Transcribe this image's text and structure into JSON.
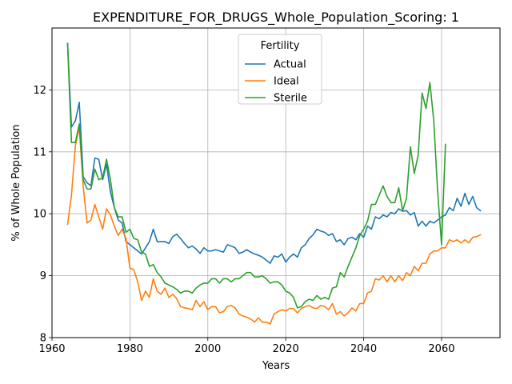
{
  "chart_data": {
    "type": "line",
    "title": "EXPENDITURE_FOR_DRUGS_Whole_Population_Scoring: 1",
    "xlabel": "Years",
    "ylabel": "% of Whole Population",
    "xlim": [
      1960,
      2075
    ],
    "ylim": [
      8,
      13
    ],
    "xticks": [
      1960,
      1980,
      2000,
      2020,
      2040,
      2060
    ],
    "yticks": [
      8,
      9,
      10,
      11,
      12
    ],
    "grid": true,
    "legend": {
      "title": "Fertility",
      "position": "top-center"
    },
    "series": [
      {
        "name": "Actual",
        "color": "#1f77b4",
        "x": [
          1964,
          1965,
          1966,
          1967,
          1968,
          1969,
          1970,
          1971,
          1972,
          1973,
          1974,
          1975,
          1976,
          1977,
          1978,
          1979,
          1980,
          1981,
          1982,
          1983,
          1984,
          1985,
          1986,
          1987,
          1988,
          1989,
          1990,
          1991,
          1992,
          1993,
          1994,
          1995,
          1996,
          1997,
          1998,
          1999,
          2000,
          2001,
          2002,
          2003,
          2004,
          2005,
          2006,
          2007,
          2008,
          2009,
          2010,
          2011,
          2012,
          2013,
          2014,
          2015,
          2016,
          2017,
          2018,
          2019,
          2020,
          2021,
          2022,
          2023,
          2024,
          2025,
          2026,
          2027,
          2028,
          2029,
          2030,
          2031,
          2032,
          2033,
          2034,
          2035,
          2036,
          2037,
          2038,
          2039,
          2040,
          2041,
          2042,
          2043,
          2044,
          2045,
          2046,
          2047,
          2048,
          2049,
          2050,
          2051,
          2052,
          2053,
          2054,
          2055,
          2056,
          2057,
          2058,
          2059,
          2060,
          2061,
          2062,
          2063,
          2064,
          2065,
          2066,
          2067,
          2068,
          2069,
          2070
        ],
        "values": [
          12.75,
          11.4,
          11.5,
          11.8,
          10.6,
          10.5,
          10.45,
          10.9,
          10.88,
          10.55,
          10.8,
          10.35,
          10.1,
          9.9,
          9.85,
          9.55,
          9.5,
          9.45,
          9.4,
          9.35,
          9.45,
          9.55,
          9.75,
          9.55,
          9.55,
          9.55,
          9.52,
          9.63,
          9.67,
          9.6,
          9.52,
          9.45,
          9.48,
          9.43,
          9.36,
          9.45,
          9.4,
          9.4,
          9.42,
          9.4,
          9.38,
          9.5,
          9.48,
          9.45,
          9.36,
          9.38,
          9.42,
          9.38,
          9.35,
          9.33,
          9.3,
          9.25,
          9.2,
          9.32,
          9.3,
          9.35,
          9.22,
          9.3,
          9.35,
          9.3,
          9.45,
          9.5,
          9.6,
          9.66,
          9.75,
          9.72,
          9.7,
          9.65,
          9.68,
          9.55,
          9.58,
          9.5,
          9.6,
          9.62,
          9.58,
          9.68,
          9.62,
          9.8,
          9.75,
          9.95,
          9.92,
          9.98,
          9.95,
          10.02,
          10.0,
          10.08,
          10.04,
          10.05,
          9.98,
          10.02,
          9.8,
          9.88,
          9.8,
          9.88,
          9.85,
          9.9,
          9.95,
          9.98,
          10.1,
          10.05,
          10.25,
          10.12,
          10.33,
          10.15,
          10.28,
          10.1,
          10.05
        ]
      },
      {
        "name": "Ideal",
        "color": "#ff7f0e",
        "x": [
          1964,
          1965,
          1966,
          1967,
          1968,
          1969,
          1970,
          1971,
          1972,
          1973,
          1974,
          1975,
          1976,
          1977,
          1978,
          1979,
          1980,
          1981,
          1982,
          1983,
          1984,
          1985,
          1986,
          1987,
          1988,
          1989,
          1990,
          1991,
          1992,
          1993,
          1994,
          1995,
          1996,
          1997,
          1998,
          1999,
          2000,
          2001,
          2002,
          2003,
          2004,
          2005,
          2006,
          2007,
          2008,
          2009,
          2010,
          2011,
          2012,
          2013,
          2014,
          2015,
          2016,
          2017,
          2018,
          2019,
          2020,
          2021,
          2022,
          2023,
          2024,
          2025,
          2026,
          2027,
          2028,
          2029,
          2030,
          2031,
          2032,
          2033,
          2034,
          2035,
          2036,
          2037,
          2038,
          2039,
          2040,
          2041,
          2042,
          2043,
          2044,
          2045,
          2046,
          2047,
          2048,
          2049,
          2050,
          2051,
          2052,
          2053,
          2054,
          2055,
          2056,
          2057,
          2058,
          2059,
          2060,
          2061,
          2062,
          2063,
          2064,
          2065,
          2066,
          2067,
          2068,
          2069,
          2070
        ],
        "values": [
          9.83,
          10.3,
          11.1,
          11.4,
          10.45,
          9.85,
          9.9,
          10.15,
          9.95,
          9.75,
          10.08,
          9.98,
          9.8,
          9.65,
          9.75,
          9.6,
          9.12,
          9.1,
          8.9,
          8.6,
          8.75,
          8.65,
          8.95,
          8.75,
          8.7,
          8.8,
          8.65,
          8.7,
          8.63,
          8.5,
          8.48,
          8.47,
          8.45,
          8.6,
          8.5,
          8.58,
          8.45,
          8.5,
          8.5,
          8.4,
          8.42,
          8.5,
          8.52,
          8.48,
          8.38,
          8.35,
          8.33,
          8.3,
          8.25,
          8.32,
          8.25,
          8.25,
          8.22,
          8.38,
          8.42,
          8.45,
          8.43,
          8.47,
          8.47,
          8.4,
          8.47,
          8.5,
          8.52,
          8.48,
          8.47,
          8.52,
          8.5,
          8.45,
          8.55,
          8.38,
          8.42,
          8.35,
          8.4,
          8.48,
          8.43,
          8.55,
          8.55,
          8.72,
          8.75,
          8.95,
          8.93,
          9.0,
          8.9,
          9.0,
          8.9,
          9.0,
          8.92,
          9.05,
          9.0,
          9.15,
          9.08,
          9.2,
          9.2,
          9.35,
          9.4,
          9.4,
          9.45,
          9.45,
          9.58,
          9.55,
          9.58,
          9.53,
          9.58,
          9.53,
          9.62,
          9.63,
          9.66
        ]
      },
      {
        "name": "Sterile",
        "color": "#2ca02c",
        "x": [
          1964,
          1965,
          1966,
          1967,
          1968,
          1969,
          1970,
          1971,
          1972,
          1973,
          1974,
          1975,
          1976,
          1977,
          1978,
          1979,
          1980,
          1981,
          1982,
          1983,
          1984,
          1985,
          1986,
          1987,
          1988,
          1989,
          1990,
          1991,
          1992,
          1993,
          1994,
          1995,
          1996,
          1997,
          1998,
          1999,
          2000,
          2001,
          2002,
          2003,
          2004,
          2005,
          2006,
          2007,
          2008,
          2009,
          2010,
          2011,
          2012,
          2013,
          2014,
          2015,
          2016,
          2017,
          2018,
          2019,
          2020,
          2021,
          2022,
          2023,
          2024,
          2025,
          2026,
          2027,
          2028,
          2029,
          2030,
          2031,
          2032,
          2033,
          2034,
          2035,
          2036,
          2037,
          2038,
          2039,
          2040,
          2041,
          2042,
          2043,
          2044,
          2045,
          2046,
          2047,
          2048,
          2049,
          2050,
          2051,
          2052,
          2053,
          2054,
          2055,
          2056,
          2057,
          2058,
          2059,
          2060,
          2061
        ],
        "values": [
          12.75,
          11.15,
          11.15,
          11.45,
          10.55,
          10.4,
          10.4,
          10.72,
          10.55,
          10.58,
          10.88,
          10.55,
          10.1,
          9.95,
          9.95,
          9.7,
          9.75,
          9.6,
          9.58,
          9.38,
          9.35,
          9.15,
          9.18,
          9.05,
          8.98,
          8.88,
          8.85,
          8.82,
          8.78,
          8.72,
          8.75,
          8.75,
          8.72,
          8.8,
          8.85,
          8.88,
          8.88,
          8.95,
          8.95,
          8.88,
          8.95,
          8.95,
          8.9,
          8.95,
          8.95,
          9.0,
          9.05,
          9.05,
          8.98,
          8.98,
          9.0,
          8.95,
          8.88,
          8.9,
          8.9,
          8.85,
          8.75,
          8.72,
          8.65,
          8.48,
          8.5,
          8.58,
          8.62,
          8.6,
          8.68,
          8.62,
          8.65,
          8.62,
          8.8,
          8.82,
          9.05,
          8.98,
          9.15,
          9.3,
          9.45,
          9.65,
          9.75,
          9.88,
          10.15,
          10.15,
          10.3,
          10.45,
          10.28,
          10.18,
          10.18,
          10.42,
          10.05,
          10.25,
          11.08,
          10.65,
          10.95,
          11.95,
          11.7,
          12.12,
          11.5,
          10.35,
          9.5,
          11.12
        ]
      }
    ]
  }
}
